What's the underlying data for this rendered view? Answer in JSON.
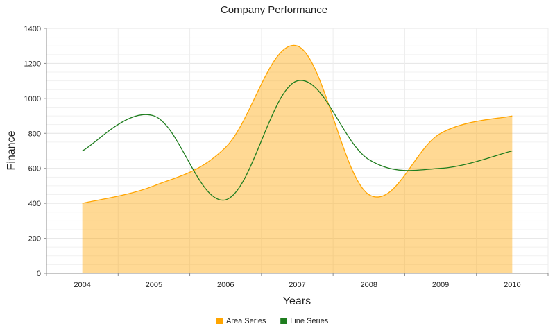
{
  "chart_data": {
    "type": "area",
    "title": "Company Performance",
    "xlabel": "Years",
    "ylabel": "Finance",
    "categories": [
      "2004",
      "2005",
      "2006",
      "2007",
      "2008",
      "2009",
      "2010"
    ],
    "ylim": [
      0,
      1400
    ],
    "yticks": [
      0,
      200,
      400,
      600,
      800,
      1000,
      1200,
      1400
    ],
    "grid": true,
    "legend_position": "bottom",
    "series": [
      {
        "name": "Area Series",
        "type": "area",
        "color": "#FFA500",
        "values": [
          400,
          500,
          720,
          1300,
          450,
          800,
          900
        ]
      },
      {
        "name": "Line Series",
        "type": "line",
        "color": "#1E7D1E",
        "values": [
          700,
          900,
          420,
          1100,
          650,
          600,
          700
        ]
      }
    ]
  }
}
